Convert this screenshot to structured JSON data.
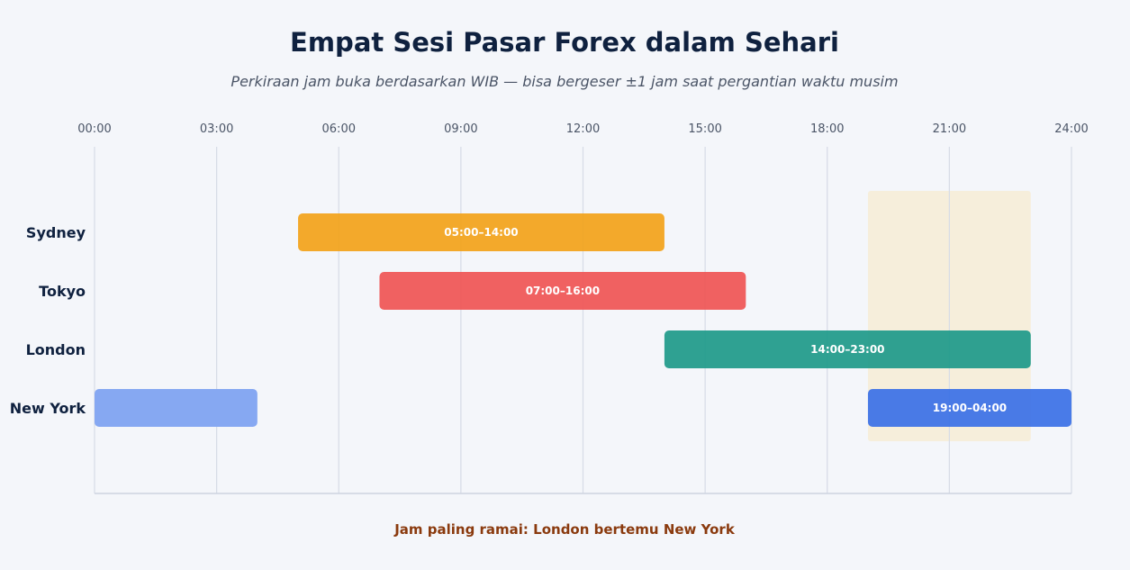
{
  "chart_data": {
    "type": "bar",
    "orientation": "horizontal-range",
    "title": "Empat Sesi Pasar Forex dalam Sehari",
    "subtitle": "Perkiraan jam buka berdasarkan WIB — bisa bergeser ±1 jam saat pergantian waktu musim",
    "x_range": [
      0,
      24
    ],
    "x_ticks": [
      "00:00",
      "03:00",
      "06:00",
      "09:00",
      "12:00",
      "15:00",
      "18:00",
      "21:00",
      "24:00"
    ],
    "x_tick_values": [
      0,
      3,
      6,
      9,
      12,
      15,
      18,
      21,
      24
    ],
    "x_axis_position": "top",
    "grid": true,
    "categories": [
      "Sydney",
      "Tokyo",
      "London",
      "New York"
    ],
    "sessions": [
      {
        "name": "Sydney",
        "start": 5,
        "end": 14,
        "label": "05:00–14:00",
        "color": "#f2a21b"
      },
      {
        "name": "Tokyo",
        "start": 7,
        "end": 16,
        "label": "07:00–16:00",
        "color": "#ef5555"
      },
      {
        "name": "London",
        "start": 14,
        "end": 23,
        "label": "14:00–23:00",
        "color": "#1f9a8a"
      },
      {
        "name": "New York",
        "start": 19,
        "end": 28,
        "label": "19:00–04:00",
        "color": "#3b71e6",
        "wrap_color": "#86a8f2"
      }
    ],
    "highlight": {
      "start": 19,
      "end": 23,
      "color": "#f6eedb",
      "label": "Jam paling ramai: London bertemu New York",
      "label_color": "#8a3a0e"
    }
  }
}
